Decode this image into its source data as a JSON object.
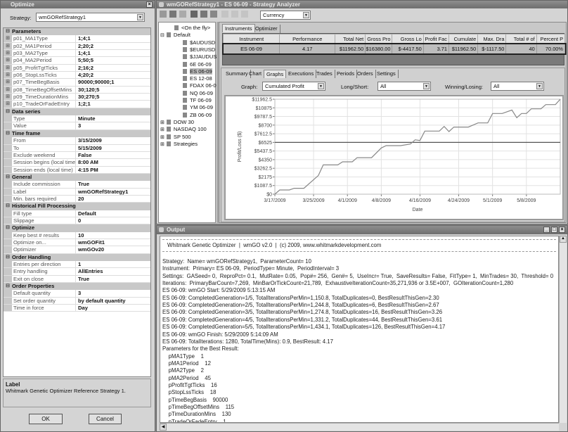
{
  "optimize": {
    "title": "Optimize",
    "strategy_label": "Strategy:",
    "strategy_value": "wmGORefStrategy1",
    "properties": [
      {
        "category": "Parameters",
        "rows": [
          [
            "p01_MA1Type",
            "1;4;1"
          ],
          [
            "p02_MA1Period",
            "2;20;2"
          ],
          [
            "p03_MA2Type",
            "1;4;1"
          ],
          [
            "p04_MA2Period",
            "5;50;5"
          ],
          [
            "p05_ProfitTgtTicks",
            "2;16;2"
          ],
          [
            "p06_StopLssTicks",
            "4;20;2"
          ],
          [
            "p07_TimeBegBasis",
            "90000;90000;1"
          ],
          [
            "p08_TimeBegOffsetMins",
            "30;120;5"
          ],
          [
            "p09_TimeDurationMins",
            "30;270;5"
          ],
          [
            "p10_TradeOrFadeEntry",
            "1;2;1"
          ]
        ]
      },
      {
        "category": "Data series",
        "rows": [
          [
            "Type",
            "Minute"
          ],
          [
            "Value",
            "3"
          ]
        ]
      },
      {
        "category": "Time frame",
        "rows": [
          [
            "From",
            "3/15/2009"
          ],
          [
            "To",
            "5/15/2009"
          ],
          [
            "Exclude weekend",
            "False"
          ],
          [
            "Session begins (local time)",
            "8:00 AM"
          ],
          [
            "Session ends (local time)",
            "4:15 PM"
          ]
        ]
      },
      {
        "category": "General",
        "rows": [
          [
            "Include commission",
            "True"
          ],
          [
            "Label",
            "wmGORefStrategy1"
          ],
          [
            "Min. bars required",
            "20"
          ]
        ]
      },
      {
        "category": "Historical Fill Processing",
        "rows": [
          [
            "Fill type",
            "Default"
          ],
          [
            "Slippage",
            "0"
          ]
        ]
      },
      {
        "category": "Optimize",
        "rows": [
          [
            "Keep best # results",
            "10"
          ],
          [
            "Optimize on...",
            "wmGOFit1"
          ],
          [
            "Optimizer",
            "wmGOv20"
          ]
        ]
      },
      {
        "category": "Order Handling",
        "rows": [
          [
            "Entries per direction",
            "1"
          ],
          [
            "Entry handling",
            "AllEntries"
          ],
          [
            "Exit on close",
            "True"
          ]
        ]
      },
      {
        "category": "Order Properties",
        "rows": [
          [
            "Default quantity",
            "3"
          ],
          [
            "Set order quantity",
            "by default quantity"
          ],
          [
            "Time in force",
            "Day"
          ]
        ]
      }
    ],
    "help_title": "Label",
    "help_text": "Whitmark Genetic Optimizer Reference Strategy 1.",
    "ok_label": "OK",
    "cancel_label": "Cancel"
  },
  "analyzer": {
    "title": "wmGORefStrategy1 - ES 06-09 - Strategy Analyzer",
    "currency_value": "Currency",
    "tree": [
      {
        "label": "<On the fly>",
        "level": 1
      },
      {
        "label": "Default",
        "level": 0,
        "expander": "⊟"
      },
      {
        "label": "$AUDUSD",
        "level": 2
      },
      {
        "label": "$EURUSD",
        "level": 2
      },
      {
        "label": "$JJAUDUSD",
        "level": 2
      },
      {
        "label": "6E 06-09",
        "level": 2
      },
      {
        "label": "ES 06-09",
        "level": 2,
        "selected": true
      },
      {
        "label": "ES 12-08",
        "level": 2
      },
      {
        "label": "FDAX 06-09",
        "level": 2
      },
      {
        "label": "NQ 06-09",
        "level": 2
      },
      {
        "label": "TF 06-09",
        "level": 2
      },
      {
        "label": "YM 06-09",
        "level": 2
      },
      {
        "label": "ZB 06-09",
        "level": 2
      },
      {
        "label": "DOW 30",
        "level": 0,
        "expander": "⊞"
      },
      {
        "label": "NASDAQ 100",
        "level": 0,
        "expander": "⊞"
      },
      {
        "label": "SP 500",
        "level": 0,
        "expander": "⊞"
      },
      {
        "label": "Strategies",
        "level": 0,
        "expander": "⊞"
      }
    ],
    "top_tabs": [
      "Instruments",
      "Optimizer"
    ],
    "columns": [
      "Instrument",
      "Performance",
      "Total Net",
      "Gross Pro",
      "Gross Lo",
      "Profit Fac",
      "Cumulate",
      "Max. Dra",
      "Total # of",
      "Percent P"
    ],
    "rows": [
      [
        "ES 06-09",
        "4.17",
        "$11962.50",
        "$16380.00",
        "$-4417.50",
        "3.71",
        "$11962.50",
        "$-1117.50",
        "40",
        "70.00%"
      ]
    ],
    "detail_tabs": [
      "Summary",
      "Chart",
      "Graphs",
      "Executions",
      "Trades",
      "Periods",
      "Orders",
      "Settings"
    ],
    "active_detail_tab": "Graphs",
    "graph_label": "Graph:",
    "graph_value": "Cumulated Profit",
    "longshort_label": "Long/Short:",
    "longshort_value": "All",
    "winlose_label": "Winning/Losing:",
    "winlose_value": "All"
  },
  "chart_data": {
    "type": "line",
    "xlabel": "Date",
    "ylabel": "Profit/Loss ($)",
    "x_ticks": [
      "3/17/2009",
      "3/25/2009",
      "4/1/2009",
      "4/8/2009",
      "4/16/2009",
      "4/24/2009",
      "5/1/2009",
      "5/8/2009"
    ],
    "y_ticks": [
      "$0",
      "$1087.5",
      "$2175",
      "$3262.5",
      "$4350",
      "$5437.5",
      "$6525",
      "$7612.5",
      "$8700",
      "$9787.5",
      "$10875",
      "$11962.5"
    ],
    "xlim": [
      "2009-03-17",
      "2009-05-15"
    ],
    "ylim": [
      0,
      11962.5
    ],
    "reference_line": 6525,
    "grid": true,
    "points": [
      [
        "2009-03-17",
        0
      ],
      [
        "2009-03-18",
        530
      ],
      [
        "2009-03-20",
        530
      ],
      [
        "2009-03-21",
        740
      ],
      [
        "2009-03-23",
        740
      ],
      [
        "2009-03-26",
        2360
      ],
      [
        "2009-03-27",
        3690
      ],
      [
        "2009-03-30",
        3690
      ],
      [
        "2009-03-31",
        4080
      ],
      [
        "2009-04-02",
        4080
      ],
      [
        "2009-04-03",
        4600
      ],
      [
        "2009-04-06",
        4600
      ],
      [
        "2009-04-08",
        5820
      ],
      [
        "2009-04-09",
        6110
      ],
      [
        "2009-04-12",
        6110
      ],
      [
        "2009-04-14",
        6320
      ],
      [
        "2009-04-15",
        6850
      ],
      [
        "2009-04-16",
        6760
      ],
      [
        "2009-04-17",
        7945
      ],
      [
        "2009-04-20",
        7945
      ],
      [
        "2009-04-21",
        8535
      ],
      [
        "2009-04-22",
        7890
      ],
      [
        "2009-04-23",
        8450
      ],
      [
        "2009-04-26",
        8450
      ],
      [
        "2009-04-28",
        8980
      ],
      [
        "2009-04-30",
        8980
      ],
      [
        "2009-05-01",
        10160
      ],
      [
        "2009-05-03",
        10160
      ],
      [
        "2009-05-05",
        10600
      ],
      [
        "2009-05-06",
        9630
      ],
      [
        "2009-05-07",
        10160
      ],
      [
        "2009-05-08",
        10160
      ],
      [
        "2009-05-09",
        10750
      ],
      [
        "2009-05-11",
        10750
      ],
      [
        "2009-05-12",
        11280
      ],
      [
        "2009-05-14",
        11280
      ],
      [
        "2009-05-15",
        11962.5
      ]
    ]
  },
  "output": {
    "title": "Output",
    "header": "Whitmark Genetic Optimizer  |  wmGO v2.0  |  (c) 2009, www.whitmarkdevelopment.com",
    "lines": [
      "Strategy:  Name= wmGORefStrategy1,  ParameterCount= 10",
      "Instrument:  Primary= ES 06-09,  PeriodType= Minute,  PeriodInterval= 3",
      "Settings:  GASeed= 0,  ReproPct= 0.1,  MutRate= 0.05,  Pop#= 256,  Gen#= 5,  UseIncr= True,  SaveResults= False,  FitType= 1,  MinTrades= 30,  Threshold= 0",
      "Iterations:  PrimaryBarCount=7,269,  MinBarOrTickCount=21,789,  ExhaustiveIterationCount=35,271,936 or 3.5E+007,  GOIterationCount=1,280",
      "ES 06-09: wmGO Start: 5/29/2009 5:13:15 AM",
      "ES 06-09: CompletedGeneration=1/5, TotalIterationsPerMin=1,150.8, TotalDuplicates=0, BestResultThisGen=2.30",
      "ES 06-09: CompletedGeneration=2/5, TotalIterationsPerMin=1,244.8, TotalDuplicates=6, BestResultThisGen=2.67",
      "ES 06-09: CompletedGeneration=3/5, TotalIterationsPerMin=1,274.8, TotalDuplicates=16, BestResultThisGen=3.26",
      "ES 06-09: CompletedGeneration=4/5, TotalIterationsPerMin=1,331.2, TotalDuplicates=44, BestResultThisGen=3.61",
      "ES 06-09: CompletedGeneration=5/5, TotalIterationsPerMin=1,434.1, TotalDuplicates=126, BestResultThisGen=4.17",
      "ES 06-09: wmGO Finish: 5/29/2009 5:14:09 AM",
      "ES 06-09: TotalIterations: 1280, TotalTime(Mins): 0.9, BestResult: 4.17",
      "Parameters for the Best Result:",
      "    pMA1Type    1",
      "    pMA1Period    12",
      "    pMA2Type    2",
      "    pMA2Period    45",
      "    pProfitTgtTicks    16",
      "    pStopLssTicks    18",
      "    pTimeBegBasis    90000",
      "    pTimeBegOffsetMins    115",
      "    pTimeDurationMins    130",
      "    pTradeOrFadeEntry    1"
    ]
  }
}
